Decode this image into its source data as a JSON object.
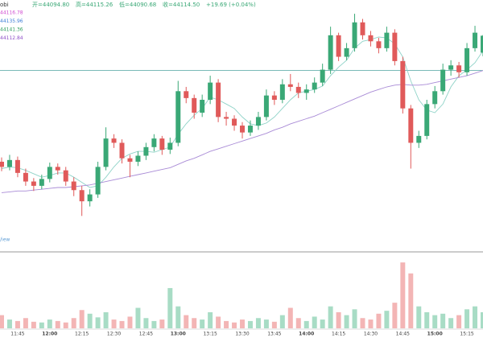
{
  "chart_data": {
    "type": "candlestick",
    "source": "obi",
    "ohlc_labels": [
      "开=44094.80",
      "高=44115.26",
      "低=44090.68",
      "收=44114.50"
    ],
    "change": "+19.69 (+0.04%)",
    "indicators": [
      {
        "label": "44116.78",
        "color": "#d04bd0"
      },
      {
        "label": "44135.96",
        "color": "#3f7fd6"
      },
      {
        "label": "44141.36",
        "color": "#2e9e5e"
      },
      {
        "label": "44112.84",
        "color": "#8e4fc8"
      }
    ],
    "watermark": "/iew",
    "up_color": "#3aa876",
    "down_color": "#e05a5a",
    "up_volume_color": "#a8dcc5",
    "down_volume_color": "#f3b5b5",
    "price_line": 44074,
    "price_line_color": "#4fa3a0",
    "ylim": [
      43866,
      44156
    ],
    "volume_ylim": [
      0,
      100
    ],
    "categories": [
      null,
      null,
      "11:45",
      null,
      null,
      null,
      "12:00",
      null,
      null,
      null,
      "12:15",
      null,
      null,
      null,
      "12:30",
      null,
      null,
      null,
      "12:45",
      null,
      null,
      null,
      "13:00",
      null,
      null,
      null,
      "13:15",
      null,
      null,
      null,
      "13:30",
      null,
      null,
      null,
      "13:45",
      null,
      null,
      null,
      "14:00",
      null,
      null,
      null,
      "14:15",
      null,
      null,
      null,
      "14:30",
      null,
      null,
      null,
      "14:45",
      null,
      null,
      null,
      "15:00",
      null,
      null,
      null,
      "15:15",
      null,
      null
    ],
    "open": [
      43968,
      43962,
      43970,
      43955,
      43945,
      43940,
      43948,
      43962,
      43958,
      43945,
      43935,
      43922,
      43930,
      43962,
      43995,
      43990,
      43972,
      43968,
      43975,
      43985,
      43995,
      43982,
      43990,
      44050,
      44042,
      44025,
      44040,
      44060,
      44020,
      44018,
      44010,
      44002,
      44010,
      44020,
      44045,
      44040,
      44058,
      44055,
      44048,
      44052,
      44060,
      44075,
      44115,
      44090,
      44100,
      44130,
      44115,
      44108,
      44100,
      44118,
      44085,
      44030,
      43990,
      43998,
      44035,
      44050,
      44075,
      44080,
      44072,
      44100,
      44094.8
    ],
    "high": [
      43973,
      43976,
      43974,
      43960,
      43949,
      43953,
      43967,
      43966,
      43962,
      43950,
      43940,
      43936,
      43968,
      44008,
      44000,
      43994,
      43976,
      43980,
      43990,
      44000,
      43998,
      43996,
      44062,
      44055,
      44046,
      44046,
      44068,
      44064,
      44026,
      44022,
      44014,
      44016,
      44026,
      44052,
      44050,
      44064,
      44070,
      44060,
      44058,
      44066,
      44082,
      44125,
      44118,
      44106,
      44140,
      44134,
      44120,
      44112,
      44125,
      44122,
      44090,
      44034,
      44004,
      44040,
      44056,
      44082,
      44086,
      44084,
      44106,
      44126,
      44115.26
    ],
    "low": [
      43957,
      43958,
      43950,
      43940,
      43934,
      43936,
      43944,
      43953,
      43940,
      43928,
      43905,
      43916,
      43926,
      43958,
      43984,
      43966,
      43950,
      43963,
      43970,
      43980,
      43976,
      43977,
      43986,
      44036,
      44018,
      44020,
      44035,
      44014,
      44010,
      44004,
      43995,
      43998,
      44005,
      44016,
      44034,
      44036,
      44050,
      44042,
      44040,
      44048,
      44056,
      44070,
      44085,
      44086,
      44096,
      44110,
      44102,
      44094,
      44096,
      44080,
      44024,
      43960,
      43984,
      43994,
      44030,
      44046,
      44068,
      44066,
      44068,
      44096,
      44090.68
    ],
    "close": [
      43962,
      43970,
      43955,
      43945,
      43940,
      43948,
      43962,
      43958,
      43945,
      43935,
      43922,
      43930,
      43962,
      43995,
      43990,
      43972,
      43968,
      43975,
      43985,
      43995,
      43982,
      43990,
      44050,
      44042,
      44025,
      44040,
      44060,
      44020,
      44018,
      44010,
      44002,
      44010,
      44020,
      44045,
      44040,
      44058,
      44055,
      44048,
      44052,
      44060,
      44075,
      44115,
      44090,
      44100,
      44130,
      44115,
      44108,
      44100,
      44118,
      44085,
      44030,
      43990,
      43998,
      44035,
      44050,
      44075,
      44080,
      44072,
      44100,
      44118,
      44114.5
    ],
    "volume": [
      18,
      12,
      10,
      14,
      9,
      8,
      12,
      10,
      8,
      14,
      25,
      20,
      15,
      22,
      12,
      10,
      16,
      28,
      14,
      10,
      12,
      55,
      30,
      18,
      14,
      12,
      22,
      16,
      10,
      8,
      12,
      10,
      14,
      12,
      9,
      18,
      28,
      14,
      10,
      16,
      12,
      30,
      22,
      18,
      26,
      14,
      12,
      20,
      24,
      35,
      90,
      75,
      30,
      22,
      18,
      20,
      14,
      18,
      26,
      30,
      22
    ],
    "ma_lines": [
      {
        "color": "#8fd3c8",
        "values": [
          43960,
          43962,
          43961,
          43958,
          43954,
          43950,
          43952,
          43955,
          43955,
          43950,
          43944,
          43938,
          43940,
          43950,
          43962,
          43972,
          43977,
          43980,
          43980,
          43979,
          43982,
          43985,
          44000,
          44012,
          44022,
          44030,
          44043,
          44040,
          44035,
          44030,
          44020,
          44012,
          44010,
          44013,
          44020,
          44030,
          44040,
          44048,
          44050,
          44052,
          44056,
          44068,
          44078,
          44086,
          44100,
          44108,
          44110,
          44113,
          44112,
          44105,
          44090,
          44062,
          44040,
          44028,
          44025,
          44035,
          44055,
          44068,
          44075,
          44083,
          44097
        ]
      },
      {
        "color": "#a98bd6",
        "values": [
          43932,
          43933,
          43934,
          43934,
          43935,
          43936,
          43937,
          43938,
          43938,
          43939,
          43940,
          43941,
          43943,
          43945,
          43947,
          43949,
          43951,
          43953,
          43955,
          43957,
          43959,
          43961,
          43965,
          43969,
          43972,
          43976,
          43980,
          43983,
          43986,
          43989,
          43992,
          43995,
          43998,
          44001,
          44005,
          44008,
          44012,
          44015,
          44018,
          44021,
          44025,
          44029,
          44033,
          44037,
          44041,
          44045,
          44049,
          44052,
          44055,
          44057,
          44058,
          44057,
          44057,
          44058,
          44060,
          44062,
          44064,
          44066,
          44068,
          44071,
          44074
        ]
      }
    ]
  }
}
